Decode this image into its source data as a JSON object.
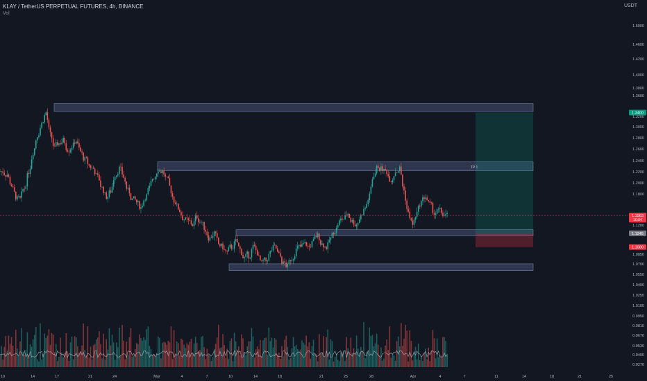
{
  "header": {
    "symbol_line": "KLAY / TetherUS PERPETUAL FUTURES, 4h, BINANCE",
    "volume_label": "Vol",
    "currency": "USDT"
  },
  "chart_data": {
    "type": "candlestick",
    "price_axis_ticks": [
      "1.5000",
      "1.4600",
      "1.4200",
      "1.4000",
      "1.3800",
      "1.3600",
      "1.3200",
      "1.3000",
      "1.2800",
      "1.2600",
      "1.2400",
      "1.2200",
      "1.2000",
      "1.1800",
      "1.1400",
      "1.1200",
      "1.0850",
      "1.0700",
      "1.0550",
      "1.0400",
      "1.0250",
      "1.0100",
      "0.9950",
      "0.9810",
      "0.9670",
      "0.9530",
      "0.9400",
      "0.9270"
    ],
    "time_axis_ticks": [
      "10",
      "14",
      "17",
      "21",
      "24",
      "Mar",
      "4",
      "7",
      "10",
      "14",
      "18",
      "21",
      "25",
      "28",
      "Apr",
      "4",
      "7",
      "11",
      "14",
      "18",
      "21",
      "25"
    ],
    "ylim_price": [
      1.055,
      1.51
    ],
    "close_series": [
      1.235,
      1.23,
      1.21,
      1.19,
      1.185,
      1.205,
      1.235,
      1.27,
      1.3,
      1.32,
      1.34,
      1.3,
      1.275,
      1.285,
      1.29,
      1.275,
      1.28,
      1.29,
      1.27,
      1.255,
      1.245,
      1.24,
      1.225,
      1.205,
      1.19,
      1.2,
      1.23,
      1.24,
      1.225,
      1.2,
      1.185,
      1.18,
      1.17,
      1.19,
      1.205,
      1.225,
      1.24,
      1.235,
      1.22,
      1.2,
      1.18,
      1.165,
      1.15,
      1.145,
      1.14,
      1.155,
      1.145,
      1.13,
      1.115,
      1.125,
      1.105,
      1.1,
      1.09,
      1.1,
      1.11,
      1.095,
      1.08,
      1.085,
      1.1,
      1.09,
      1.07,
      1.075,
      1.09,
      1.1,
      1.085,
      1.07,
      1.065,
      1.08,
      1.095,
      1.1,
      1.105,
      1.1,
      1.11,
      1.12,
      1.105,
      1.1,
      1.115,
      1.13,
      1.145,
      1.15,
      1.16,
      1.145,
      1.14,
      1.155,
      1.17,
      1.19,
      1.23,
      1.245,
      1.24,
      1.235,
      1.22,
      1.235,
      1.24,
      1.2,
      1.16,
      1.14,
      1.16,
      1.18,
      1.19,
      1.175,
      1.16,
      1.165,
      1.158,
      1.156
    ],
    "zones": [
      {
        "low": 1.342,
        "high": 1.356
      },
      {
        "low": 1.236,
        "high": 1.252
      },
      {
        "low": 1.12,
        "high": 1.131
      },
      {
        "low": 1.058,
        "high": 1.07
      }
    ],
    "position": {
      "entry": 1.1245,
      "target": 1.34,
      "stop": 1.1,
      "target_label": "TP 1"
    },
    "price_labels": [
      {
        "value": 1.34,
        "text": "1.3400",
        "color": "#089981"
      },
      {
        "value": 1.1563,
        "text": "1.1563",
        "sub": "10:04",
        "color": "#f23645"
      },
      {
        "value": 1.1245,
        "text": "1.1245",
        "color": "#787b86"
      },
      {
        "value": 1.1,
        "text": "1.1000",
        "color": "#f23645"
      }
    ],
    "volume_line_label": "Vol MA",
    "grid": false
  }
}
